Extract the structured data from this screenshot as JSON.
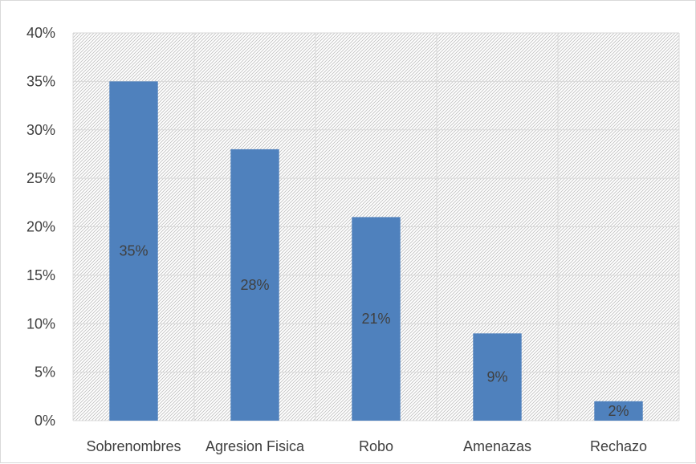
{
  "chart_data": {
    "type": "bar",
    "title": "",
    "xlabel": "",
    "ylabel": "",
    "categories": [
      "Sobrenombres",
      "Agresion Fisica",
      "Robo",
      "Amenazas",
      "Rechazo"
    ],
    "values": [
      35,
      28,
      21,
      9,
      2
    ],
    "data_labels": [
      "35%",
      "28%",
      "21%",
      "9%",
      "2%"
    ],
    "ylim": [
      0,
      40
    ],
    "yticks": [
      0,
      5,
      10,
      15,
      20,
      25,
      30,
      35,
      40
    ],
    "ytick_labels": [
      "0%",
      "5%",
      "10%",
      "15%",
      "20%",
      "25%",
      "30%",
      "35%",
      "40%"
    ],
    "grid": true,
    "legend": "none",
    "bar_color": "#4f81bd",
    "plot_background": "diagonal hatch"
  }
}
